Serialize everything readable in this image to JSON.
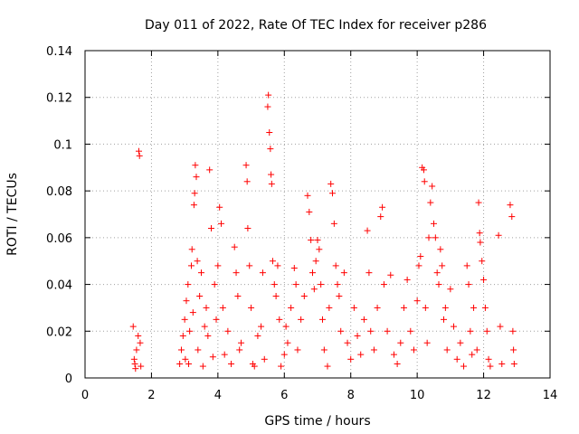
{
  "chart_data": {
    "type": "scatter",
    "title": "Day 011 of 2022, Rate Of TEC Index for receiver p286",
    "xlabel": "GPS time / hours",
    "ylabel": "ROTI / TECUs",
    "xlim": [
      0,
      14
    ],
    "ylim": [
      0,
      0.14
    ],
    "xticks": [
      "0",
      "2",
      "4",
      "6",
      "8",
      "10",
      "12",
      "14"
    ],
    "yticks": [
      "0",
      "0.02",
      "0.04",
      "0.06",
      "0.08",
      "0.1",
      "0.12",
      "0.14"
    ],
    "grid": true,
    "legend": "none",
    "marker": "plus",
    "color": "#ff0000",
    "series": [
      {
        "values": [
          [
            1.45,
            0.022
          ],
          [
            1.48,
            0.008
          ],
          [
            1.5,
            0.006
          ],
          [
            1.52,
            0.004
          ],
          [
            1.55,
            0.012
          ],
          [
            1.6,
            0.018
          ],
          [
            1.62,
            0.097
          ],
          [
            1.64,
            0.095
          ],
          [
            1.66,
            0.015
          ],
          [
            1.68,
            0.005
          ],
          [
            2.85,
            0.006
          ],
          [
            2.9,
            0.012
          ],
          [
            2.95,
            0.018
          ],
          [
            3.0,
            0.025
          ],
          [
            3.02,
            0.008
          ],
          [
            3.05,
            0.033
          ],
          [
            3.1,
            0.04
          ],
          [
            3.12,
            0.006
          ],
          [
            3.15,
            0.02
          ],
          [
            3.2,
            0.048
          ],
          [
            3.22,
            0.055
          ],
          [
            3.25,
            0.028
          ],
          [
            3.28,
            0.074
          ],
          [
            3.3,
            0.079
          ],
          [
            3.32,
            0.091
          ],
          [
            3.35,
            0.086
          ],
          [
            3.38,
            0.05
          ],
          [
            3.4,
            0.012
          ],
          [
            3.45,
            0.035
          ],
          [
            3.5,
            0.045
          ],
          [
            3.55,
            0.005
          ],
          [
            3.6,
            0.022
          ],
          [
            3.65,
            0.03
          ],
          [
            3.7,
            0.018
          ],
          [
            3.75,
            0.089
          ],
          [
            3.8,
            0.064
          ],
          [
            3.85,
            0.009
          ],
          [
            3.9,
            0.04
          ],
          [
            3.95,
            0.025
          ],
          [
            4.0,
            0.048
          ],
          [
            4.05,
            0.073
          ],
          [
            4.1,
            0.066
          ],
          [
            4.15,
            0.03
          ],
          [
            4.2,
            0.01
          ],
          [
            4.3,
            0.02
          ],
          [
            4.4,
            0.006
          ],
          [
            4.5,
            0.056
          ],
          [
            4.55,
            0.045
          ],
          [
            4.6,
            0.035
          ],
          [
            4.65,
            0.012
          ],
          [
            4.7,
            0.015
          ],
          [
            4.85,
            0.091
          ],
          [
            4.88,
            0.084
          ],
          [
            4.9,
            0.064
          ],
          [
            4.95,
            0.048
          ],
          [
            5.0,
            0.03
          ],
          [
            5.05,
            0.006
          ],
          [
            5.1,
            0.005
          ],
          [
            5.2,
            0.018
          ],
          [
            5.3,
            0.022
          ],
          [
            5.35,
            0.045
          ],
          [
            5.4,
            0.008
          ],
          [
            5.5,
            0.116
          ],
          [
            5.52,
            0.121
          ],
          [
            5.55,
            0.105
          ],
          [
            5.58,
            0.098
          ],
          [
            5.6,
            0.087
          ],
          [
            5.62,
            0.083
          ],
          [
            5.65,
            0.05
          ],
          [
            5.7,
            0.04
          ],
          [
            5.75,
            0.035
          ],
          [
            5.8,
            0.048
          ],
          [
            5.85,
            0.025
          ],
          [
            5.9,
            0.005
          ],
          [
            6.0,
            0.01
          ],
          [
            6.05,
            0.022
          ],
          [
            6.1,
            0.015
          ],
          [
            6.2,
            0.03
          ],
          [
            6.3,
            0.047
          ],
          [
            6.35,
            0.04
          ],
          [
            6.4,
            0.012
          ],
          [
            6.5,
            0.025
          ],
          [
            6.6,
            0.035
          ],
          [
            6.7,
            0.078
          ],
          [
            6.75,
            0.071
          ],
          [
            6.8,
            0.059
          ],
          [
            6.85,
            0.045
          ],
          [
            6.9,
            0.038
          ],
          [
            6.95,
            0.05
          ],
          [
            7.0,
            0.059
          ],
          [
            7.05,
            0.055
          ],
          [
            7.1,
            0.04
          ],
          [
            7.15,
            0.025
          ],
          [
            7.2,
            0.012
          ],
          [
            7.3,
            0.005
          ],
          [
            7.35,
            0.03
          ],
          [
            7.4,
            0.083
          ],
          [
            7.45,
            0.079
          ],
          [
            7.5,
            0.066
          ],
          [
            7.55,
            0.048
          ],
          [
            7.6,
            0.04
          ],
          [
            7.65,
            0.035
          ],
          [
            7.7,
            0.02
          ],
          [
            7.8,
            0.045
          ],
          [
            7.9,
            0.015
          ],
          [
            8.0,
            0.008
          ],
          [
            8.1,
            0.03
          ],
          [
            8.2,
            0.018
          ],
          [
            8.3,
            0.01
          ],
          [
            8.4,
            0.025
          ],
          [
            8.5,
            0.063
          ],
          [
            8.55,
            0.045
          ],
          [
            8.6,
            0.02
          ],
          [
            8.7,
            0.012
          ],
          [
            8.8,
            0.03
          ],
          [
            8.9,
            0.069
          ],
          [
            8.95,
            0.073
          ],
          [
            9.0,
            0.04
          ],
          [
            9.1,
            0.02
          ],
          [
            9.2,
            0.044
          ],
          [
            9.3,
            0.01
          ],
          [
            9.4,
            0.006
          ],
          [
            9.5,
            0.015
          ],
          [
            9.6,
            0.03
          ],
          [
            9.7,
            0.042
          ],
          [
            9.8,
            0.02
          ],
          [
            9.9,
            0.012
          ],
          [
            10.0,
            0.033
          ],
          [
            10.05,
            0.048
          ],
          [
            10.1,
            0.052
          ],
          [
            10.15,
            0.09
          ],
          [
            10.2,
            0.089
          ],
          [
            10.22,
            0.084
          ],
          [
            10.25,
            0.03
          ],
          [
            10.3,
            0.015
          ],
          [
            10.35,
            0.06
          ],
          [
            10.4,
            0.075
          ],
          [
            10.45,
            0.082
          ],
          [
            10.5,
            0.066
          ],
          [
            10.55,
            0.06
          ],
          [
            10.6,
            0.045
          ],
          [
            10.65,
            0.04
          ],
          [
            10.7,
            0.055
          ],
          [
            10.75,
            0.048
          ],
          [
            10.8,
            0.025
          ],
          [
            10.85,
            0.03
          ],
          [
            10.9,
            0.012
          ],
          [
            11.0,
            0.038
          ],
          [
            11.1,
            0.022
          ],
          [
            11.2,
            0.008
          ],
          [
            11.3,
            0.015
          ],
          [
            11.4,
            0.005
          ],
          [
            11.5,
            0.048
          ],
          [
            11.55,
            0.04
          ],
          [
            11.6,
            0.02
          ],
          [
            11.65,
            0.01
          ],
          [
            11.7,
            0.03
          ],
          [
            11.8,
            0.012
          ],
          [
            11.85,
            0.075
          ],
          [
            11.88,
            0.062
          ],
          [
            11.9,
            0.058
          ],
          [
            11.95,
            0.05
          ],
          [
            12.0,
            0.042
          ],
          [
            12.05,
            0.03
          ],
          [
            12.1,
            0.02
          ],
          [
            12.15,
            0.008
          ],
          [
            12.2,
            0.005
          ],
          [
            12.45,
            0.061
          ],
          [
            12.5,
            0.022
          ],
          [
            12.55,
            0.006
          ],
          [
            12.8,
            0.074
          ],
          [
            12.85,
            0.069
          ],
          [
            12.88,
            0.02
          ],
          [
            12.9,
            0.012
          ],
          [
            12.92,
            0.006
          ]
        ]
      }
    ]
  }
}
